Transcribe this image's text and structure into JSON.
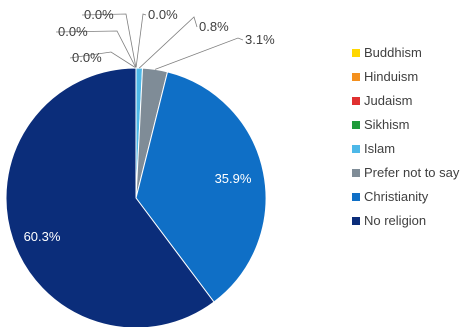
{
  "chart_data": {
    "type": "pie",
    "title": "",
    "slices": [
      {
        "label": "Buddhism",
        "value": 0.0,
        "display": "0.0%",
        "color": "#FFD700"
      },
      {
        "label": "Hinduism",
        "value": 0.0,
        "display": "0.0%",
        "color": "#F4901E"
      },
      {
        "label": "Judaism",
        "value": 0.0,
        "display": "0.0%",
        "color": "#E03030"
      },
      {
        "label": "Sikhism",
        "value": 0.0,
        "display": "0.0%",
        "color": "#1E9B3A"
      },
      {
        "label": "Islam",
        "value": 0.8,
        "display": "0.8%",
        "color": "#4DB8E8"
      },
      {
        "label": "Prefer not to say",
        "value": 3.1,
        "display": "3.1%",
        "color": "#7F8C97"
      },
      {
        "label": "Christianity",
        "value": 35.9,
        "display": "35.9%",
        "color": "#0F6FC6"
      },
      {
        "label": "No religion",
        "value": 60.3,
        "display": "60.3%",
        "color": "#0B2D7A"
      }
    ],
    "legend_position": "right"
  }
}
